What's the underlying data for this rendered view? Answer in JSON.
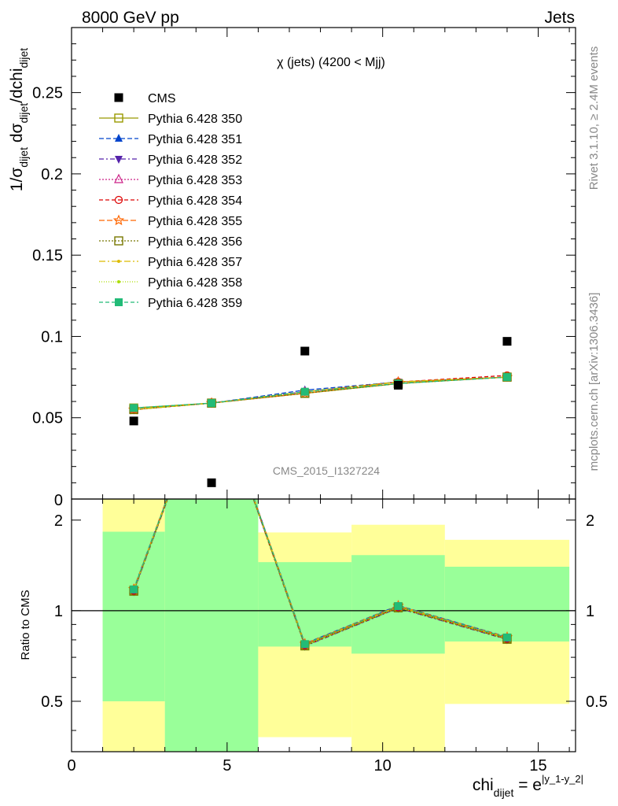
{
  "header": {
    "left": "8000 GeV pp",
    "right": "Jets"
  },
  "side": {
    "rivet": "Rivet 3.1.10, ≥ 2.4M events",
    "mcplots": "mcplots.cern.ch [arXiv:1306.3436]"
  },
  "watermark": "CMS_2015_I1327224",
  "colors": {
    "data": "#000000",
    "band_inner": "#99ff99",
    "band_outer": "#ffff99",
    "ref_line": "#000000"
  },
  "chart_data": [
    {
      "type": "line",
      "title": "χ (jets) (4200 < Mjj)",
      "ylabel": "1/σ_dijet dσ_dijet/dchi_dijet",
      "xlim": [
        0,
        16.2
      ],
      "ylim": [
        0,
        0.29
      ],
      "yticks": [
        0.05,
        0.1,
        0.15,
        0.2,
        0.25
      ],
      "ytick_labels": [
        "0.05",
        "0.1",
        "0.15",
        "0.2",
        "0.25"
      ],
      "ytick_zero_label": "0",
      "x": [
        2,
        4.5,
        7.5,
        10.5,
        14
      ],
      "data": {
        "name": "CMS",
        "values": [
          0.048,
          0.01,
          0.091,
          0.07,
          0.097
        ]
      },
      "series": [
        {
          "name": "Pythia 6.428 350",
          "color": "#999900",
          "marker": "square-open",
          "dash": "",
          "values": [
            0.056,
            0.059,
            0.065,
            0.071,
            0.075
          ]
        },
        {
          "name": "Pythia 6.428 351",
          "color": "#0044cc",
          "marker": "triangle-up",
          "dash": "6,3",
          "values": [
            0.055,
            0.059,
            0.067,
            0.072,
            0.075
          ]
        },
        {
          "name": "Pythia 6.428 352",
          "color": "#5522aa",
          "marker": "triangle-down",
          "dash": "6,3,2,3",
          "values": [
            0.055,
            0.059,
            0.066,
            0.072,
            0.075
          ]
        },
        {
          "name": "Pythia 6.428 353",
          "color": "#cc2288",
          "marker": "triangle-open",
          "dash": "2,2",
          "values": [
            0.055,
            0.059,
            0.066,
            0.072,
            0.075
          ]
        },
        {
          "name": "Pythia 6.428 354",
          "color": "#dd0000",
          "marker": "circle-open",
          "dash": "5,3",
          "values": [
            0.055,
            0.059,
            0.066,
            0.072,
            0.076
          ]
        },
        {
          "name": "Pythia 6.428 355",
          "color": "#ff6600",
          "marker": "star-open",
          "dash": "7,3",
          "values": [
            0.055,
            0.059,
            0.065,
            0.072,
            0.075
          ]
        },
        {
          "name": "Pythia 6.428 356",
          "color": "#777700",
          "marker": "square-open",
          "dash": "2,2",
          "values": [
            0.055,
            0.059,
            0.065,
            0.071,
            0.075
          ]
        },
        {
          "name": "Pythia 6.428 357",
          "color": "#ddbb00",
          "marker": "dot",
          "dash": "8,3,2,3",
          "values": [
            0.055,
            0.059,
            0.066,
            0.072,
            0.075
          ]
        },
        {
          "name": "Pythia 6.428 358",
          "color": "#aadd00",
          "marker": "dot",
          "dash": "1,2",
          "values": [
            0.055,
            0.059,
            0.066,
            0.072,
            0.075
          ]
        },
        {
          "name": "Pythia 6.428 359",
          "color": "#22bb77",
          "marker": "square",
          "dash": "5,3",
          "values": [
            0.056,
            0.059,
            0.066,
            0.071,
            0.075
          ]
        }
      ]
    },
    {
      "type": "line",
      "xlabel": "chi_dijet = e^|y_1-y_2|",
      "ylabel": "Ratio to CMS",
      "xlim": [
        0,
        16.2
      ],
      "ylim": [
        0.34,
        2.35
      ],
      "log_y": true,
      "xticks": [
        0,
        5,
        10,
        15
      ],
      "xtick_labels": [
        "0",
        "5",
        "10",
        "15"
      ],
      "yticks": [
        0.5,
        1,
        2
      ],
      "ytick_labels": [
        "0.5",
        "1",
        "2"
      ],
      "bins": [
        [
          1,
          3
        ],
        [
          3,
          6
        ],
        [
          6,
          9
        ],
        [
          9,
          12
        ],
        [
          12,
          16
        ]
      ],
      "band_inner": [
        [
          0.5,
          1.83
        ],
        [
          0.3,
          3.0
        ],
        [
          0.76,
          1.45
        ],
        [
          0.72,
          1.53
        ],
        [
          0.79,
          1.4
        ]
      ],
      "band_outer": [
        [
          0.3,
          3.0
        ],
        [
          0.3,
          3.0
        ],
        [
          0.38,
          1.82
        ],
        [
          0.3,
          1.93
        ],
        [
          0.49,
          1.72
        ]
      ],
      "x": [
        2,
        4.5,
        7.5,
        10.5,
        14
      ],
      "ratio_values": [
        1.17,
        5.9,
        0.77,
        1.03,
        0.81
      ],
      "ratio_offsets": [
        0.0,
        0.01,
        -0.01,
        0.005,
        -0.005,
        0.008,
        -0.008,
        0.004,
        -0.004,
        0.006
      ]
    }
  ]
}
